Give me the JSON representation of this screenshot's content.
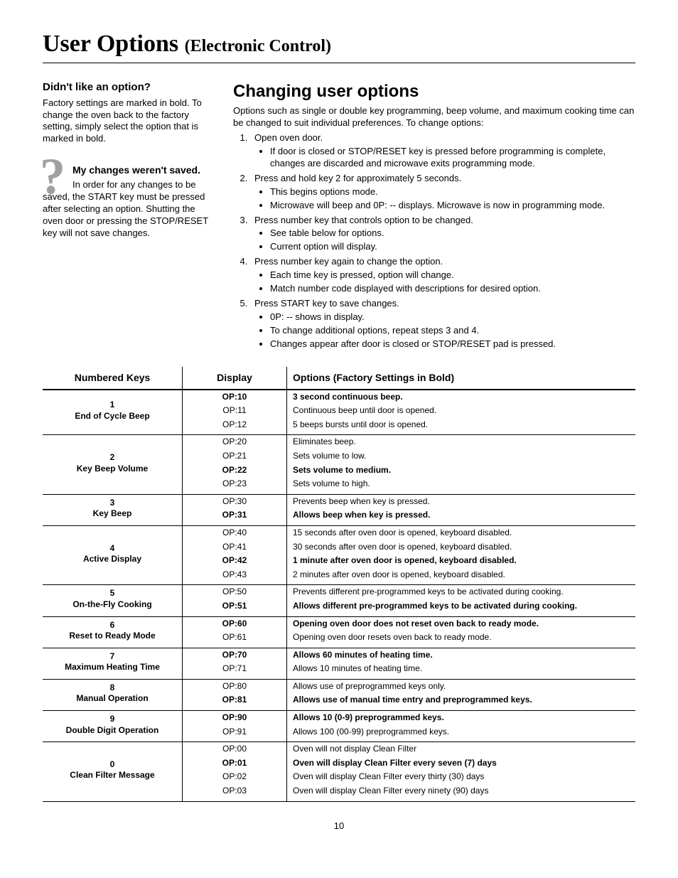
{
  "title_main": "User Options",
  "title_sub": "(Electronic Control)",
  "sidebar": {
    "didnt_like_head": "Didn't like an option?",
    "didnt_like_body": "Factory settings are marked in bold. To change the oven back to the factory setting, simply select the option that is marked in bold.",
    "tip_head": "My changes weren't saved.",
    "tip_body_indent": "In order for any changes to be saved, the START key",
    "tip_body_rest": "must be pressed after selecting an option. Shutting the oven door or pressing the STOP/RESET key will not save changes."
  },
  "main": {
    "heading": "Changing user options",
    "intro": "Options such as single or double key programming, beep volume, and maximum cooking time can be changed to suit individual preferences. To change options:",
    "steps": [
      {
        "text": "Open oven door.",
        "sub": [
          "If door is closed or STOP/RESET key is pressed before programming is complete, changes are discarded and microwave exits programming mode."
        ]
      },
      {
        "text": "Press and hold key 2 for approximately 5 seconds.",
        "sub": [
          "This begins options mode.",
          "Microwave will beep and 0P: -- displays. Microwave is now in programming mode."
        ]
      },
      {
        "text": "Press number key that controls option to be changed.",
        "sub": [
          "See table below for options.",
          "Current option will display."
        ]
      },
      {
        "text": "Press number key again to change the option.",
        "sub": [
          "Each time key is pressed, option will change.",
          "Match number code displayed with descriptions for desired option."
        ]
      },
      {
        "text": "Press START key to save changes.",
        "sub": [
          "0P: -- shows in display.",
          "To change additional options, repeat steps 3 and 4.",
          "Changes appear after door is closed or STOP/RESET pad is pressed."
        ]
      }
    ]
  },
  "table": {
    "headers": [
      "Numbered Keys",
      "Display",
      "Options (Factory Settings in Bold)"
    ],
    "groups": [
      {
        "num": "1",
        "name": "End of Cycle Beep",
        "rows": [
          {
            "disp": "OP:10",
            "opt": "3 second continuous beep.",
            "bold": true
          },
          {
            "disp": "OP:11",
            "opt": "Continuous beep until door is opened.",
            "bold": false
          },
          {
            "disp": "OP:12",
            "opt": "5 beeps bursts until door is opened.",
            "bold": false
          }
        ]
      },
      {
        "num": "2",
        "name": "Key Beep Volume",
        "rows": [
          {
            "disp": "OP:20",
            "opt": "Eliminates beep.",
            "bold": false
          },
          {
            "disp": "OP:21",
            "opt": "Sets volume to low.",
            "bold": false
          },
          {
            "disp": "OP:22",
            "opt": "Sets volume to medium.",
            "bold": true
          },
          {
            "disp": "OP:23",
            "opt": "Sets volume to high.",
            "bold": false
          }
        ]
      },
      {
        "num": "3",
        "name": "Key Beep",
        "rows": [
          {
            "disp": "OP:30",
            "opt": "Prevents beep when key is pressed.",
            "bold": false
          },
          {
            "disp": "OP:31",
            "opt": "Allows beep when key is pressed.",
            "bold": true
          }
        ]
      },
      {
        "num": "4",
        "name": "Active Display",
        "rows": [
          {
            "disp": "OP:40",
            "opt": "15 seconds after oven door is opened, keyboard disabled.",
            "bold": false
          },
          {
            "disp": "OP:41",
            "opt": "30 seconds after oven door is opened, keyboard disabled.",
            "bold": false
          },
          {
            "disp": "OP:42",
            "opt": "1 minute after oven door is opened, keyboard disabled.",
            "bold": true
          },
          {
            "disp": "OP:43",
            "opt": "2 minutes after oven door is opened, keyboard disabled.",
            "bold": false
          }
        ]
      },
      {
        "num": "5",
        "name": "On-the-Fly Cooking",
        "rows": [
          {
            "disp": "OP:50",
            "opt": "Prevents different pre-programmed keys to be activated during cooking.",
            "bold": false
          },
          {
            "disp": "OP:51",
            "opt": "Allows different pre-programmed keys to be activated during cooking.",
            "bold": true
          }
        ]
      },
      {
        "num": "6",
        "name": "Reset to Ready Mode",
        "rows": [
          {
            "disp": "OP:60",
            "opt": "Opening oven door does not reset oven back to ready mode.",
            "bold": true
          },
          {
            "disp": "OP:61",
            "opt": "Opening oven door resets oven back to ready mode.",
            "bold": false
          }
        ]
      },
      {
        "num": "7",
        "name": "Maximum Heating Time",
        "rows": [
          {
            "disp": "OP:70",
            "opt": "Allows 60 minutes of heating time.",
            "bold": true
          },
          {
            "disp": "OP:71",
            "opt": "Allows 10 minutes of heating time.",
            "bold": false
          }
        ]
      },
      {
        "num": "8",
        "name": "Manual Operation",
        "rows": [
          {
            "disp": "OP:80",
            "opt": "Allows use of preprogrammed keys only.",
            "bold": false
          },
          {
            "disp": "OP:81",
            "opt": "Allows use of manual time entry and preprogrammed keys.",
            "bold": true
          }
        ]
      },
      {
        "num": "9",
        "name": "Double Digit Operation",
        "rows": [
          {
            "disp": "OP:90",
            "opt": "Allows 10 (0-9) preprogrammed keys.",
            "bold": true
          },
          {
            "disp": "OP:91",
            "opt": "Allows 100 (00-99) preprogrammed keys.",
            "bold": false
          }
        ]
      },
      {
        "num": "0",
        "name": "Clean Filter Message",
        "rows": [
          {
            "disp": "OP:00",
            "opt": "Oven will not display Clean Filter",
            "bold": false
          },
          {
            "disp": "OP:01",
            "opt": "Oven will display Clean Filter every seven (7) days",
            "bold": true
          },
          {
            "disp": "OP:02",
            "opt": "Oven will display Clean Filter every thirty (30) days",
            "bold": false
          },
          {
            "disp": "OP:03",
            "opt": "Oven will display Clean Filter every ninety (90) days",
            "bold": false
          }
        ]
      }
    ]
  },
  "page_number": "10"
}
